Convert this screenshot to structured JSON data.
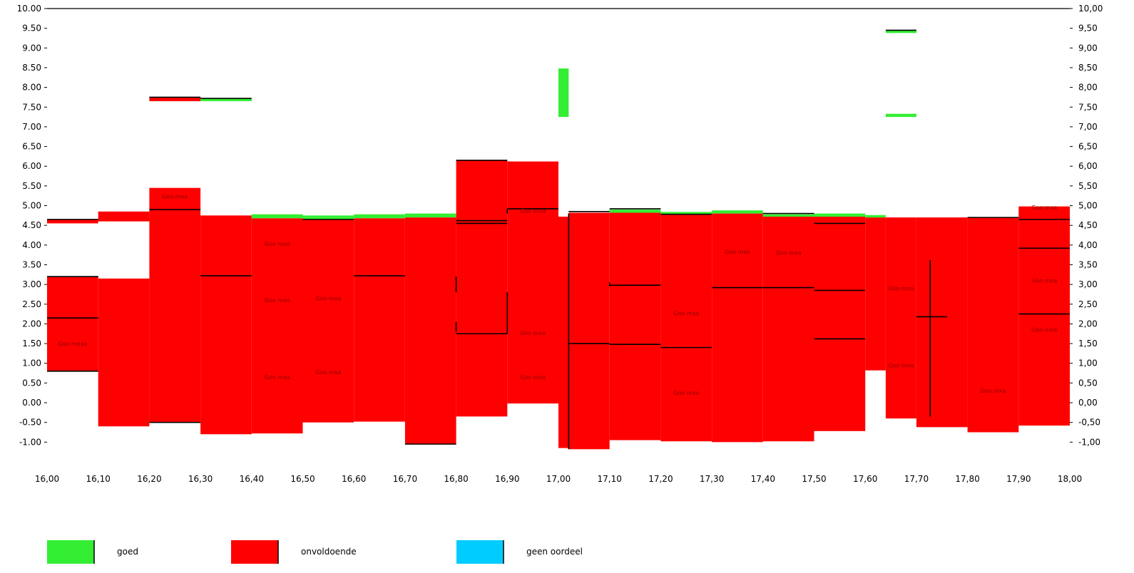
{
  "colors": {
    "goed": "#33ee33",
    "onvoldoende": "#ff0000",
    "geen_oordeel": "#00ccff",
    "line": "#000000"
  },
  "legend": [
    {
      "key": "goed",
      "label": "goed",
      "color": "#33ee33"
    },
    {
      "key": "onvoldoende",
      "label": "onvoldoende",
      "color": "#ff0000"
    },
    {
      "key": "geen_oordeel",
      "label": "geen oordeel",
      "color": "#00ccff"
    }
  ],
  "chart_data": {
    "type": "bar",
    "title": "",
    "xlabel": "",
    "ylabel": "",
    "xlim": [
      16.0,
      18.0
    ],
    "ylim": [
      -1.5,
      10.0
    ],
    "legend_position": "bottom",
    "x_ticks": [
      "16,00",
      "16,10",
      "16,20",
      "16,30",
      "16,40",
      "16,50",
      "16,60",
      "16,70",
      "16,80",
      "16,90",
      "17,00",
      "17,10",
      "17,20",
      "17,30",
      "17,40",
      "17,50",
      "17,60",
      "17,70",
      "17,80",
      "17,90",
      "18,00"
    ],
    "y_ticks_left": [
      "10.00",
      "9.50",
      "9.00",
      "8.50",
      "8.00",
      "7.50",
      "7.00",
      "6.50",
      "6.00",
      "5.50",
      "5.00",
      "4.50",
      "4.00",
      "3.50",
      "3.00",
      "2.50",
      "2.00",
      "1.50",
      "1.00",
      "0.50",
      "0.00",
      "-0.50",
      "-1.00"
    ],
    "y_ticks_right": [
      "10,00",
      "9,50",
      "9,00",
      "8,50",
      "8,00",
      "7,50",
      "7,00",
      "6,50",
      "6,00",
      "5,50",
      "5,00",
      "4,50",
      "4,00",
      "3,50",
      "3,00",
      "2,50",
      "2,00",
      "1,50",
      "1,00",
      "0,50",
      "0,00",
      "-0,50",
      "-1,00"
    ],
    "red_segments": [
      {
        "x0": 16.0,
        "x1": 16.1,
        "y0": 4.55,
        "y1": 4.65
      },
      {
        "x0": 16.0,
        "x1": 16.1,
        "y0": 0.8,
        "y1": 3.2
      },
      {
        "x0": 16.1,
        "x1": 16.2,
        "y0": 4.6,
        "y1": 4.85
      },
      {
        "x0": 16.1,
        "x1": 16.2,
        "y0": -0.6,
        "y1": 3.15
      },
      {
        "x0": 16.2,
        "x1": 16.3,
        "y0": 7.65,
        "y1": 7.75
      },
      {
        "x0": 16.2,
        "x1": 16.3,
        "y0": -0.5,
        "y1": 5.45
      },
      {
        "x0": 16.3,
        "x1": 16.4,
        "y0": -0.8,
        "y1": 4.75
      },
      {
        "x0": 16.4,
        "x1": 16.5,
        "y0": -0.78,
        "y1": 4.68
      },
      {
        "x0": 16.5,
        "x1": 16.6,
        "y0": -0.5,
        "y1": 4.65
      },
      {
        "x0": 16.6,
        "x1": 16.7,
        "y0": -0.48,
        "y1": 4.68
      },
      {
        "x0": 16.7,
        "x1": 16.8,
        "y0": -1.05,
        "y1": 4.7
      },
      {
        "x0": 16.8,
        "x1": 16.9,
        "y0": -0.35,
        "y1": 6.15
      },
      {
        "x0": 16.9,
        "x1": 17.0,
        "y0": -0.02,
        "y1": 6.12
      },
      {
        "x0": 17.0,
        "x1": 17.02,
        "y0": -1.15,
        "y1": 4.72
      },
      {
        "x0": 17.02,
        "x1": 17.1,
        "y0": -1.18,
        "y1": 4.82
      },
      {
        "x0": 17.1,
        "x1": 17.2,
        "y0": -0.95,
        "y1": 4.82
      },
      {
        "x0": 17.2,
        "x1": 17.3,
        "y0": -0.98,
        "y1": 4.78
      },
      {
        "x0": 17.3,
        "x1": 17.4,
        "y0": -1.0,
        "y1": 4.8
      },
      {
        "x0": 17.4,
        "x1": 17.5,
        "y0": -0.98,
        "y1": 4.72
      },
      {
        "x0": 17.5,
        "x1": 17.6,
        "y0": -0.72,
        "y1": 4.72
      },
      {
        "x0": 17.6,
        "x1": 17.64,
        "y0": 0.82,
        "y1": 4.7
      },
      {
        "x0": 17.64,
        "x1": 17.7,
        "y0": -0.4,
        "y1": 4.7
      },
      {
        "x0": 17.7,
        "x1": 17.8,
        "y0": -0.62,
        "y1": 4.7
      },
      {
        "x0": 17.8,
        "x1": 17.9,
        "y0": -0.75,
        "y1": 4.7
      },
      {
        "x0": 17.9,
        "x1": 18.0,
        "y0": -0.58,
        "y1": 4.98
      }
    ],
    "green_segments": [
      {
        "x0": 16.3,
        "x1": 16.4,
        "y0": 7.65,
        "y1": 7.72
      },
      {
        "x0": 16.4,
        "x1": 16.5,
        "y0": 4.68,
        "y1": 4.78
      },
      {
        "x0": 16.5,
        "x1": 16.6,
        "y0": 4.65,
        "y1": 4.75
      },
      {
        "x0": 16.6,
        "x1": 16.7,
        "y0": 4.68,
        "y1": 4.78
      },
      {
        "x0": 16.7,
        "x1": 16.8,
        "y0": 4.7,
        "y1": 4.8
      },
      {
        "x0": 17.0,
        "x1": 17.02,
        "y0": 7.25,
        "y1": 8.48
      },
      {
        "x0": 17.1,
        "x1": 17.2,
        "y0": 4.82,
        "y1": 4.9
      },
      {
        "x0": 17.2,
        "x1": 17.3,
        "y0": 4.78,
        "y1": 4.84
      },
      {
        "x0": 17.3,
        "x1": 17.4,
        "y0": 4.8,
        "y1": 4.88
      },
      {
        "x0": 17.4,
        "x1": 17.5,
        "y0": 4.72,
        "y1": 4.78
      },
      {
        "x0": 17.5,
        "x1": 17.6,
        "y0": 4.72,
        "y1": 4.8
      },
      {
        "x0": 17.6,
        "x1": 17.64,
        "y0": 4.7,
        "y1": 4.76
      },
      {
        "x0": 17.64,
        "x1": 17.7,
        "y0": 9.38,
        "y1": 9.45
      },
      {
        "x0": 17.64,
        "x1": 17.7,
        "y0": 7.25,
        "y1": 7.33
      }
    ],
    "h_lines": [
      {
        "x0": 16.0,
        "x1": 16.1,
        "y": 4.65
      },
      {
        "x0": 16.0,
        "x1": 16.1,
        "y": 3.2
      },
      {
        "x0": 16.0,
        "x1": 16.1,
        "y": 2.15
      },
      {
        "x0": 16.0,
        "x1": 16.1,
        "y": 0.8
      },
      {
        "x0": 16.2,
        "x1": 16.3,
        "y": 7.75
      },
      {
        "x0": 16.2,
        "x1": 16.3,
        "y": 4.9
      },
      {
        "x0": 16.2,
        "x1": 16.3,
        "y": -0.5
      },
      {
        "x0": 16.3,
        "x1": 16.4,
        "y": 7.72
      },
      {
        "x0": 16.3,
        "x1": 16.4,
        "y": 3.22
      },
      {
        "x0": 16.5,
        "x1": 16.6,
        "y": 4.65
      },
      {
        "x0": 16.6,
        "x1": 16.7,
        "y": 3.22
      },
      {
        "x0": 16.7,
        "x1": 16.8,
        "y": -1.05
      },
      {
        "x0": 16.8,
        "x1": 16.9,
        "y": 6.15
      },
      {
        "x0": 16.8,
        "x1": 16.9,
        "y": 4.62
      },
      {
        "x0": 16.8,
        "x1": 16.9,
        "y": 4.55
      },
      {
        "x0": 16.8,
        "x1": 16.9,
        "y": 1.75
      },
      {
        "x0": 16.9,
        "x1": 17.0,
        "y": 4.92
      },
      {
        "x0": 17.02,
        "x1": 17.1,
        "y": 4.85
      },
      {
        "x0": 17.02,
        "x1": 17.1,
        "y": 1.5
      },
      {
        "x0": 17.1,
        "x1": 17.2,
        "y": 4.92
      },
      {
        "x0": 17.1,
        "x1": 17.2,
        "y": 2.98
      },
      {
        "x0": 17.1,
        "x1": 17.2,
        "y": 1.48
      },
      {
        "x0": 17.2,
        "x1": 17.3,
        "y": 4.78
      },
      {
        "x0": 17.2,
        "x1": 17.3,
        "y": 1.4
      },
      {
        "x0": 17.3,
        "x1": 17.4,
        "y": 2.92
      },
      {
        "x0": 17.4,
        "x1": 17.5,
        "y": 4.8
      },
      {
        "x0": 17.4,
        "x1": 17.5,
        "y": 2.92
      },
      {
        "x0": 17.5,
        "x1": 17.6,
        "y": 4.55
      },
      {
        "x0": 17.5,
        "x1": 17.6,
        "y": 2.85
      },
      {
        "x0": 17.5,
        "x1": 17.6,
        "y": 1.62
      },
      {
        "x0": 17.64,
        "x1": 17.7,
        "y": 9.45
      },
      {
        "x0": 17.7,
        "x1": 17.76,
        "y": 2.18
      },
      {
        "x0": 17.8,
        "x1": 17.9,
        "y": 4.7
      },
      {
        "x0": 17.9,
        "x1": 18.0,
        "y": 4.65
      },
      {
        "x0": 17.9,
        "x1": 18.0,
        "y": 3.92
      },
      {
        "x0": 17.9,
        "x1": 18.0,
        "y": 2.25
      }
    ],
    "v_lines": [
      {
        "x": 16.8,
        "y0": 2.8,
        "y1": 3.2
      },
      {
        "x": 16.8,
        "y0": 1.8,
        "y1": 2.05
      },
      {
        "x": 16.9,
        "y0": 1.75,
        "y1": 2.8
      },
      {
        "x": 16.9,
        "y0": 4.8,
        "y1": 4.92
      },
      {
        "x": 17.02,
        "y0": -1.18,
        "y1": 4.8
      },
      {
        "x": 17.1,
        "y0": 2.95,
        "y1": 3.05
      },
      {
        "x": 17.727,
        "y0": -0.35,
        "y1": 3.62
      }
    ],
    "labels": [
      {
        "x": 16.05,
        "y": 1.45,
        "text": "Goo mexa"
      },
      {
        "x": 16.25,
        "y": 5.18,
        "text": "Goo mxa"
      },
      {
        "x": 16.45,
        "y": 3.98,
        "text": "Goo mxa"
      },
      {
        "x": 16.45,
        "y": 2.55,
        "text": "Goo mxa"
      },
      {
        "x": 16.45,
        "y": 0.6,
        "text": "Goo mxa"
      },
      {
        "x": 16.55,
        "y": 2.6,
        "text": "Goo mxa"
      },
      {
        "x": 16.55,
        "y": 0.72,
        "text": "Goo mxa"
      },
      {
        "x": 16.95,
        "y": 4.82,
        "text": "Goo mxa"
      },
      {
        "x": 16.95,
        "y": 1.72,
        "text": "Goo mxa"
      },
      {
        "x": 16.95,
        "y": 0.6,
        "text": "Goo mxa"
      },
      {
        "x": 17.25,
        "y": 2.22,
        "text": "Goo mxa"
      },
      {
        "x": 17.25,
        "y": 0.2,
        "text": "Goo mxa"
      },
      {
        "x": 17.35,
        "y": 3.78,
        "text": "Goo mxa"
      },
      {
        "x": 17.45,
        "y": 3.75,
        "text": "Goo mxa"
      },
      {
        "x": 17.67,
        "y": 2.85,
        "text": "Goo mxa"
      },
      {
        "x": 17.67,
        "y": 0.9,
        "text": "Goo mxa"
      },
      {
        "x": 17.85,
        "y": 0.25,
        "text": "Goo mxa"
      },
      {
        "x": 17.95,
        "y": 4.9,
        "text": "Goo mxa"
      },
      {
        "x": 17.95,
        "y": 3.05,
        "text": "Goo mxa"
      },
      {
        "x": 17.95,
        "y": 1.8,
        "text": "Goo mxa"
      }
    ]
  }
}
